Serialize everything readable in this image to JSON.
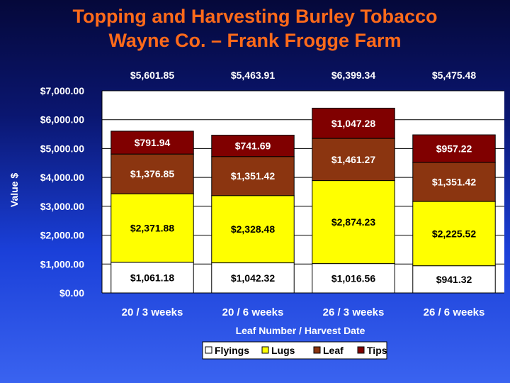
{
  "title_lines": [
    "Topping and Harvesting Burley Tobacco",
    "Wayne Co. – Frank Frogge Farm"
  ],
  "chart_data": {
    "type": "bar",
    "stacked": true,
    "categories": [
      "20 / 3 weeks",
      "20 / 6 weeks",
      "26 / 3 weeks",
      "26 / 6 weeks"
    ],
    "series": [
      {
        "name": "Flyings",
        "color": "#ffffff",
        "values": [
          1061.18,
          1042.32,
          1016.56,
          941.32
        ],
        "labels": [
          "$1,061.18",
          "$1,042.32",
          "$1,016.56",
          "$941.32"
        ]
      },
      {
        "name": "Lugs",
        "color": "#ffff00",
        "values": [
          2371.88,
          2328.48,
          2874.23,
          2225.52
        ],
        "labels": [
          "$2,371.88",
          "$2,328.48",
          "$2,874.23",
          "$2,225.52"
        ]
      },
      {
        "name": "Leaf",
        "color": "#8b3510",
        "values": [
          1376.85,
          1351.42,
          1461.27,
          1351.42
        ],
        "labels": [
          "$1,376.85",
          "$1,351.42",
          "$1,461.27",
          "$1,351.42"
        ]
      },
      {
        "name": "Tips",
        "color": "#800000",
        "values": [
          791.94,
          741.69,
          1047.28,
          957.22
        ],
        "labels": [
          "$791.94",
          "$741.69",
          "$1,047.28",
          "$957.22"
        ]
      }
    ],
    "totals": [
      "$5,601.85",
      "$5,463.91",
      "$6,399.34",
      "$5,475.48"
    ],
    "ylim": [
      0,
      7000
    ],
    "y_ticks": [
      0,
      1000,
      2000,
      3000,
      4000,
      5000,
      6000,
      7000
    ],
    "y_tick_labels": [
      "$0.00",
      "$1,000.00",
      "$2,000.00",
      "$3,000.00",
      "$4,000.00",
      "$5,000.00",
      "$6,000.00",
      "$7,000.00"
    ],
    "ylabel": "Value $",
    "xlabel": "Leaf Number / Harvest Date",
    "grid": true,
    "legend_position": "bottom"
  }
}
